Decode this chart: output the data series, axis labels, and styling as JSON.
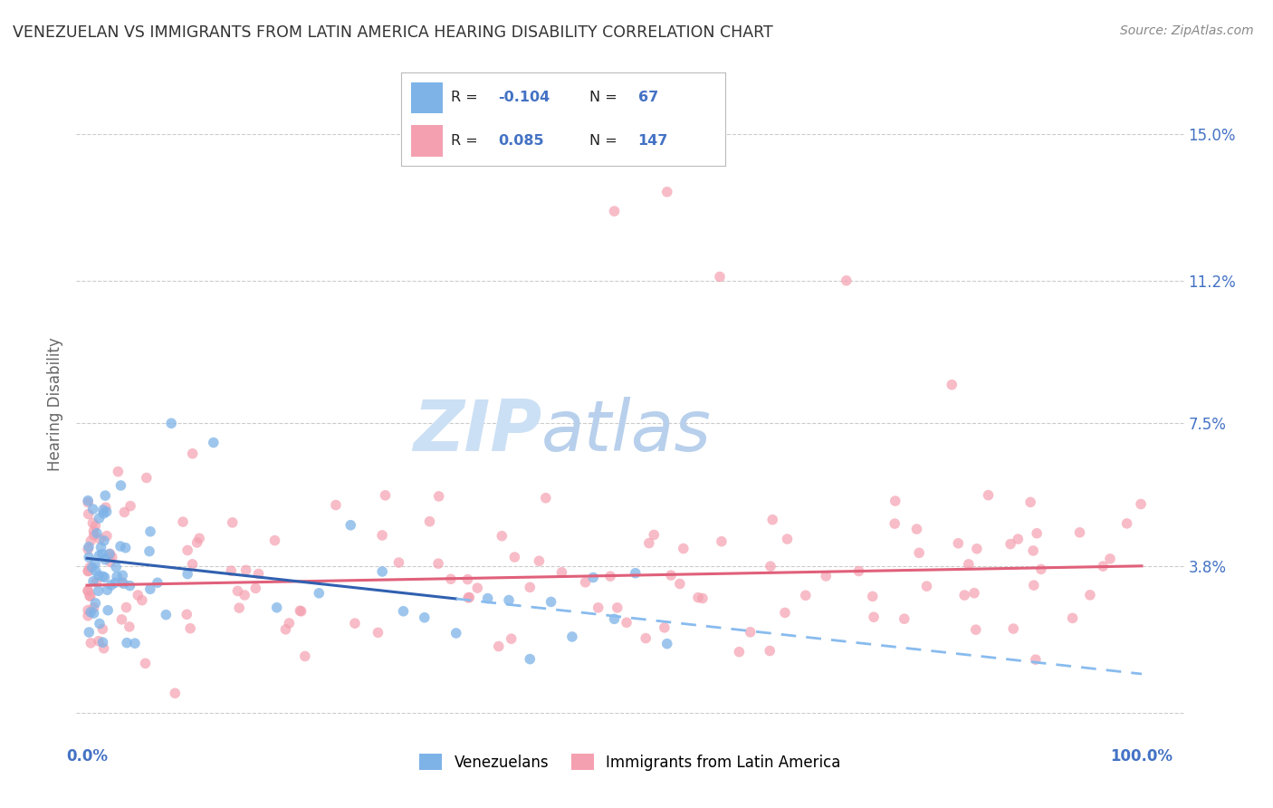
{
  "title": "VENEZUELAN VS IMMIGRANTS FROM LATIN AMERICA HEARING DISABILITY CORRELATION CHART",
  "source": "Source: ZipAtlas.com",
  "ylabel": "Hearing Disability",
  "series1_color": "#7EB3E8",
  "series2_color": "#F4A0B0",
  "series1_line_color": "#3060b0",
  "series2_line_color": "#e0607a",
  "series1_label": "Venezuelans",
  "series2_label": "Immigrants from Latin America",
  "legend_r1": "-0.104",
  "legend_n1": "67",
  "legend_r2": "0.085",
  "legend_n2": "147",
  "background_color": "#ffffff",
  "grid_color": "#cccccc",
  "ytick_vals": [
    0.0,
    0.038,
    0.075,
    0.112,
    0.15
  ],
  "ytick_labels": [
    "",
    "3.8%",
    "7.5%",
    "11.2%",
    "15.0%"
  ],
  "ylim_low": -0.008,
  "ylim_high": 0.168,
  "xlim_low": -0.01,
  "xlim_high": 1.04
}
